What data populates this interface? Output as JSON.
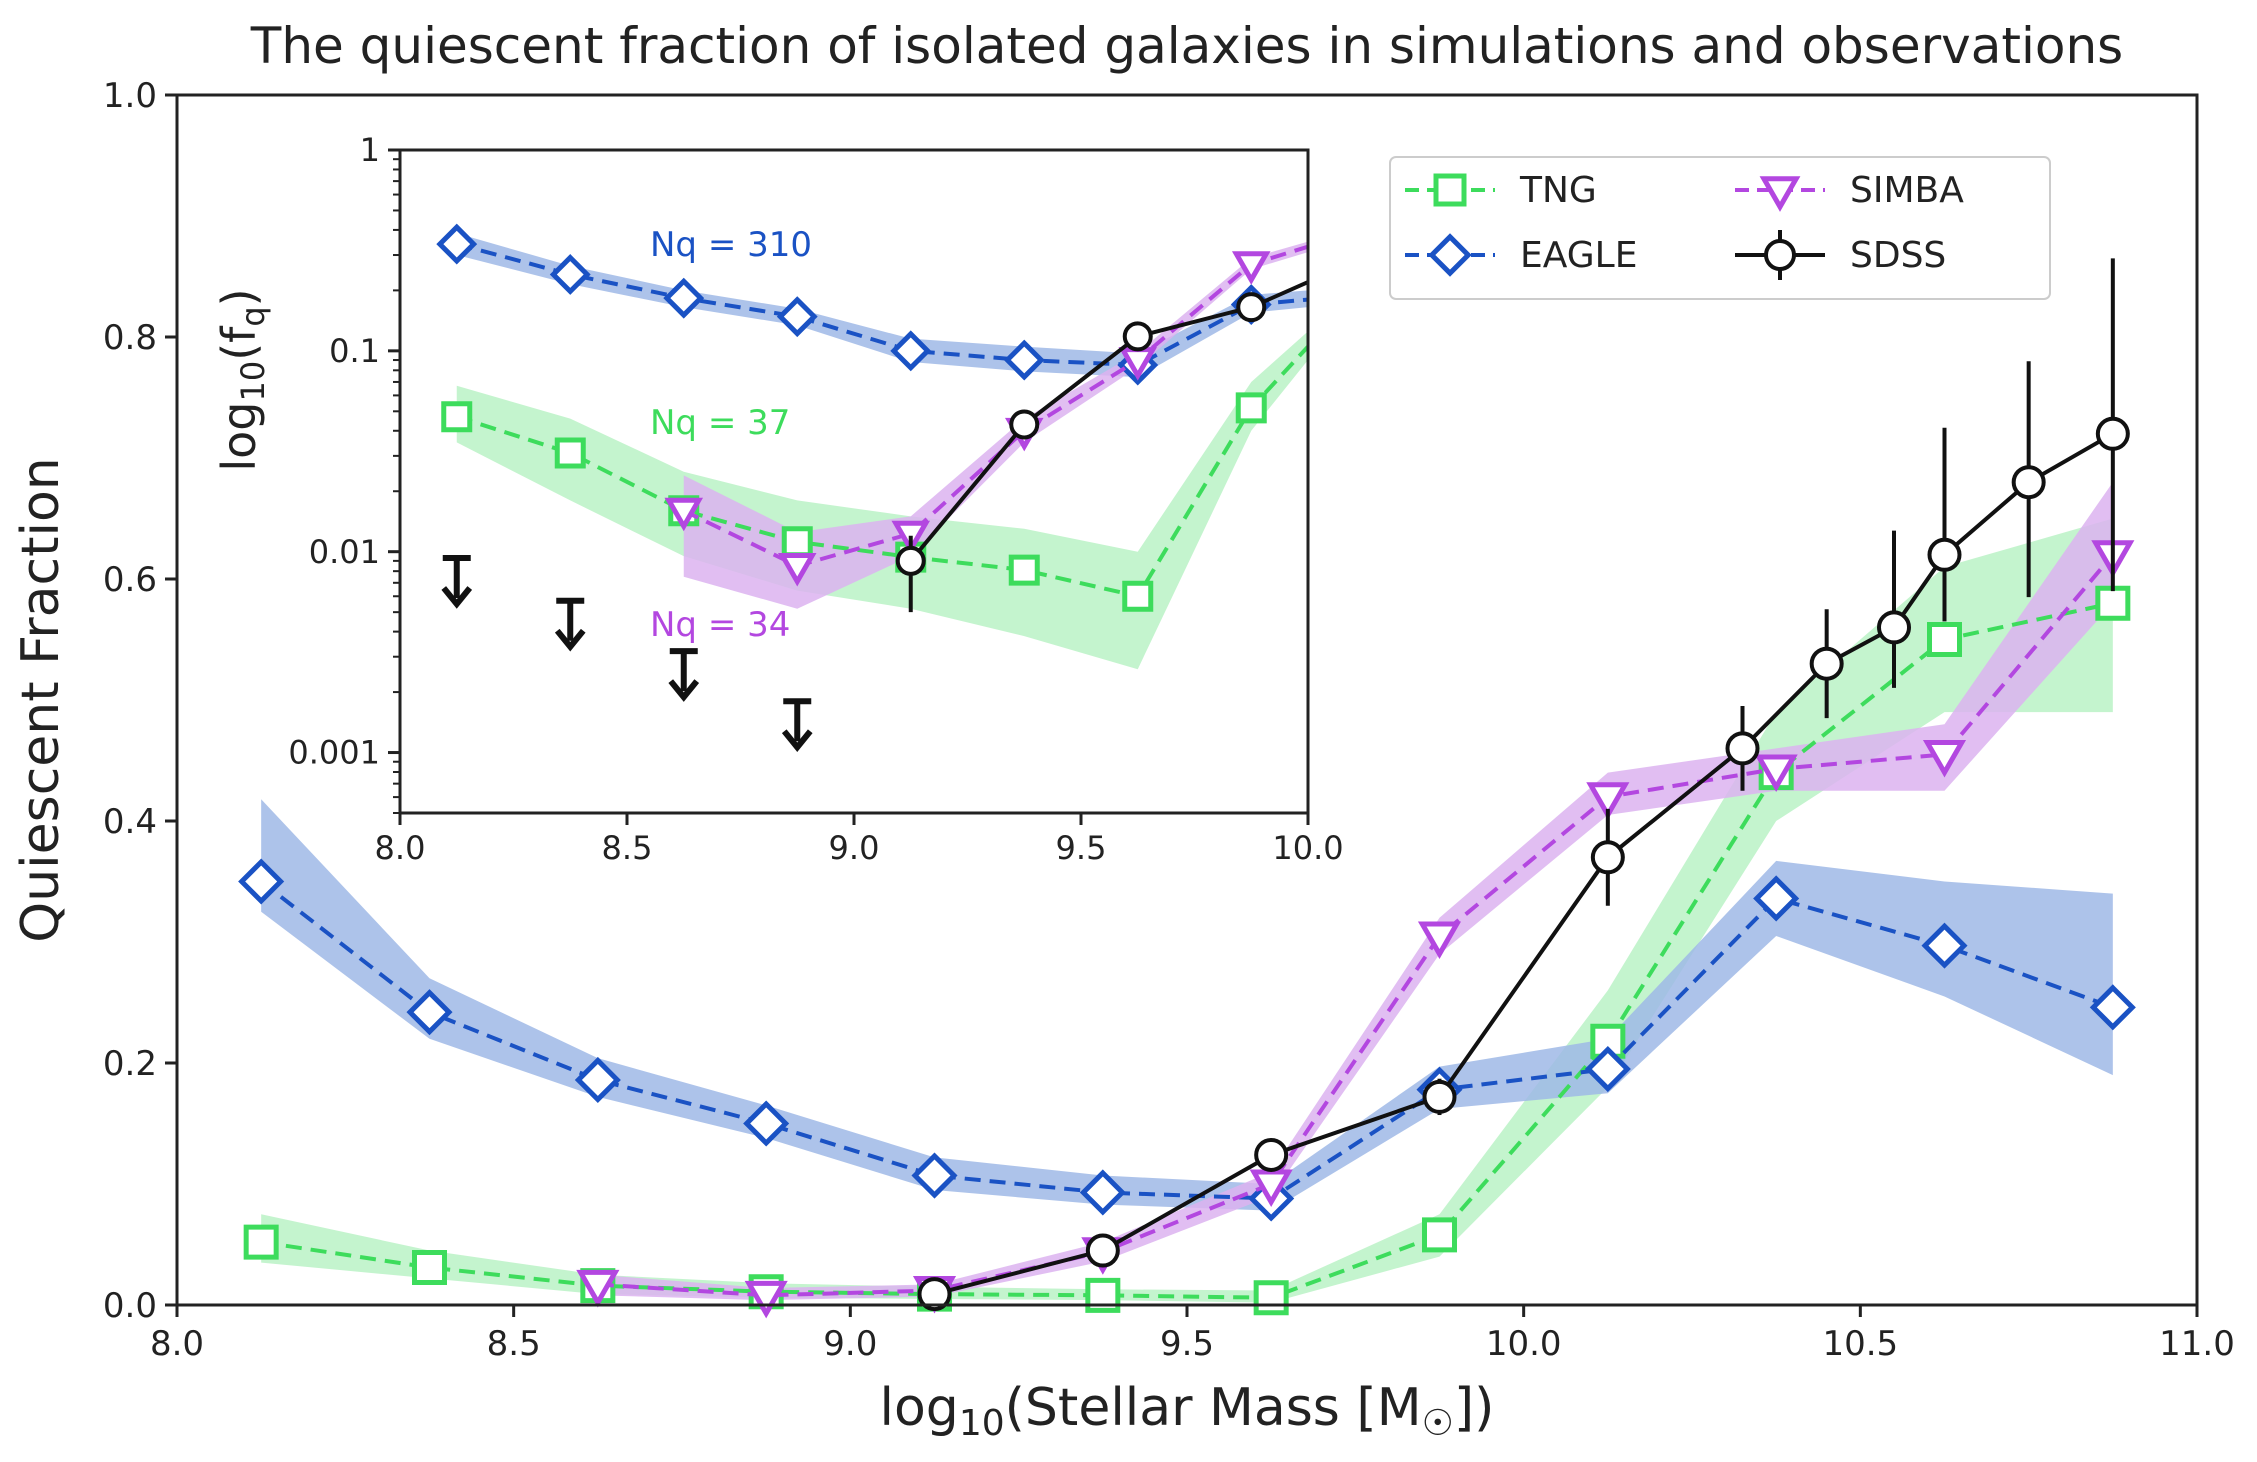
{
  "chart_data": [
    {
      "type": "line",
      "title": "The quiescent fraction of isolated galaxies in simulations and observations",
      "xlabel": "log10(Stellar Mass [M☉])",
      "ylabel": "Quiescent Fraction",
      "xlim": [
        8.0,
        11.0
      ],
      "ylim": [
        0.0,
        1.0
      ],
      "xticks": [
        8.0,
        8.5,
        9.0,
        9.5,
        10.0,
        10.5,
        11.0
      ],
      "xtick_labels": [
        "8.0",
        "8.5",
        "9.0",
        "9.5",
        "10.0",
        "10.5",
        "11.0"
      ],
      "yticks": [
        0.0,
        0.2,
        0.4,
        0.6,
        0.8,
        1.0
      ],
      "ytick_labels": [
        "0.0",
        "0.2",
        "0.4",
        "0.6",
        "0.8",
        "1.0"
      ],
      "legend_position": "top-right",
      "series": [
        {
          "name": "TNG",
          "color": "#3ddc5c",
          "marker": "square",
          "linestyle": "dashed",
          "x": [
            8.125,
            8.375,
            8.625,
            8.875,
            9.125,
            9.375,
            9.625,
            9.875,
            10.125,
            10.375,
            10.625,
            10.875
          ],
          "y": [
            0.052,
            0.031,
            0.016,
            0.011,
            0.009,
            0.008,
            0.006,
            0.058,
            0.218,
            0.44,
            0.55,
            0.58
          ],
          "band_low": [
            0.035,
            0.022,
            0.009,
            0.006,
            0.005,
            0.004,
            0.002,
            0.04,
            0.18,
            0.4,
            0.49,
            0.49
          ],
          "band_high": [
            0.075,
            0.045,
            0.025,
            0.018,
            0.015,
            0.013,
            0.012,
            0.075,
            0.26,
            0.49,
            0.61,
            0.65
          ]
        },
        {
          "name": "EAGLE",
          "color": "#1a52c4",
          "band_color": "#9fb9e6",
          "marker": "diamond",
          "linestyle": "dashed",
          "x": [
            8.125,
            8.375,
            8.625,
            8.875,
            9.125,
            9.375,
            9.625,
            9.875,
            10.125,
            10.375,
            10.625,
            10.875
          ],
          "y": [
            0.35,
            0.242,
            0.186,
            0.15,
            0.107,
            0.093,
            0.088,
            0.178,
            0.195,
            0.336,
            0.297,
            0.246
          ],
          "band_low": [
            0.325,
            0.22,
            0.172,
            0.138,
            0.095,
            0.083,
            0.078,
            0.162,
            0.175,
            0.305,
            0.255,
            0.19
          ],
          "band_high": [
            0.418,
            0.27,
            0.204,
            0.165,
            0.122,
            0.107,
            0.1,
            0.197,
            0.22,
            0.367,
            0.35,
            0.34
          ]
        },
        {
          "name": "SIMBA",
          "color": "#b347e0",
          "band_color": "#dcb3f0",
          "marker": "triangle-down",
          "linestyle": "dashed",
          "x": [
            8.625,
            8.875,
            9.125,
            9.375,
            9.625,
            9.875,
            10.125,
            10.375,
            10.625,
            10.875
          ],
          "y": [
            0.017,
            0.008,
            0.012,
            0.044,
            0.1,
            0.305,
            0.42,
            0.443,
            0.455,
            0.62
          ],
          "band_low": [
            0.008,
            0.004,
            0.007,
            0.036,
            0.09,
            0.29,
            0.405,
            0.425,
            0.425,
            0.58
          ],
          "band_high": [
            0.025,
            0.014,
            0.017,
            0.052,
            0.11,
            0.32,
            0.44,
            0.46,
            0.48,
            0.68
          ]
        },
        {
          "name": "SDSS",
          "color": "#111111",
          "marker": "circle",
          "linestyle": "solid",
          "x": [
            9.125,
            9.375,
            9.625,
            9.875,
            10.125,
            10.325,
            10.45,
            10.55,
            10.625,
            10.75,
            10.875
          ],
          "y": [
            0.009,
            0.045,
            0.124,
            0.172,
            0.37,
            0.46,
            0.53,
            0.56,
            0.62,
            0.68,
            0.72
          ],
          "err_low": [
            0.004,
            0.01,
            0.012,
            0.015,
            0.04,
            0.035,
            0.045,
            0.05,
            0.055,
            0.095,
            0.13
          ],
          "err_high": [
            0.005,
            0.01,
            0.012,
            0.015,
            0.04,
            0.035,
            0.045,
            0.08,
            0.105,
            0.1,
            0.145
          ]
        }
      ]
    },
    {
      "type": "line",
      "title": "",
      "xlabel": "",
      "ylabel": "log10(fq)",
      "yscale": "log",
      "xlim": [
        8.0,
        10.0
      ],
      "ylim": [
        0.0005,
        1.0
      ],
      "xticks": [
        8.0,
        8.5,
        9.0,
        9.5,
        10.0
      ],
      "xtick_labels": [
        "8.0",
        "8.5",
        "9.0",
        "9.5",
        "10.0"
      ],
      "yticks": [
        0.001,
        0.01,
        0.1,
        1
      ],
      "ytick_labels": [
        "0.001",
        "0.01",
        "0.1",
        "1"
      ],
      "annotations": [
        "Nq = 310",
        "Nq = 37",
        "Nq = 34"
      ],
      "upper_limits": {
        "color": "#111111",
        "x": [
          8.125,
          8.375,
          8.625,
          8.875
        ],
        "y": [
          0.0093,
          0.0057,
          0.0032,
          0.0018
        ]
      },
      "series": [
        {
          "name": "TNG",
          "color": "#3ddc5c",
          "x": [
            8.125,
            8.375,
            8.625,
            8.875,
            9.125,
            9.375,
            9.625,
            9.875,
            10.0
          ],
          "y": [
            0.047,
            0.031,
            0.016,
            0.0112,
            0.0094,
            0.0081,
            0.006,
            0.052,
            0.105
          ],
          "band_low": [
            0.035,
            0.018,
            0.0095,
            0.0064,
            0.0052,
            0.0038,
            0.0026,
            0.04,
            0.09
          ],
          "band_high": [
            0.067,
            0.046,
            0.025,
            0.018,
            0.015,
            0.013,
            0.01,
            0.07,
            0.125
          ]
        },
        {
          "name": "EAGLE",
          "color": "#1a52c4",
          "band_color": "#9fb9e6",
          "x": [
            8.125,
            8.375,
            8.625,
            8.875,
            9.125,
            9.375,
            9.625,
            9.875,
            10.0
          ],
          "y": [
            0.34,
            0.24,
            0.183,
            0.148,
            0.1,
            0.09,
            0.085,
            0.17,
            0.18
          ],
          "band_low": [
            0.3,
            0.215,
            0.165,
            0.134,
            0.088,
            0.079,
            0.074,
            0.155,
            0.165
          ],
          "band_high": [
            0.385,
            0.265,
            0.2,
            0.162,
            0.115,
            0.105,
            0.097,
            0.19,
            0.2
          ]
        },
        {
          "name": "SIMBA",
          "color": "#b347e0",
          "band_color": "#dcb3f0",
          "x": [
            8.625,
            8.875,
            9.125,
            9.375,
            9.625,
            9.875,
            10.0
          ],
          "y": [
            0.016,
            0.0085,
            0.0123,
            0.04,
            0.09,
            0.27,
            0.33
          ],
          "band_low": [
            0.0075,
            0.0052,
            0.0095,
            0.035,
            0.083,
            0.255,
            0.31
          ],
          "band_high": [
            0.024,
            0.0125,
            0.015,
            0.046,
            0.098,
            0.29,
            0.35
          ]
        },
        {
          "name": "SDSS",
          "color": "#111111",
          "x": [
            9.125,
            9.375,
            9.625,
            9.875,
            10.0
          ],
          "y": [
            0.009,
            0.043,
            0.118,
            0.165,
            0.22
          ],
          "err_low": [
            0.004,
            0.004,
            0.004,
            0.006,
            0.0
          ],
          "err_high": [
            0.003,
            0.004,
            0.004,
            0.006,
            0.0
          ]
        }
      ]
    }
  ]
}
